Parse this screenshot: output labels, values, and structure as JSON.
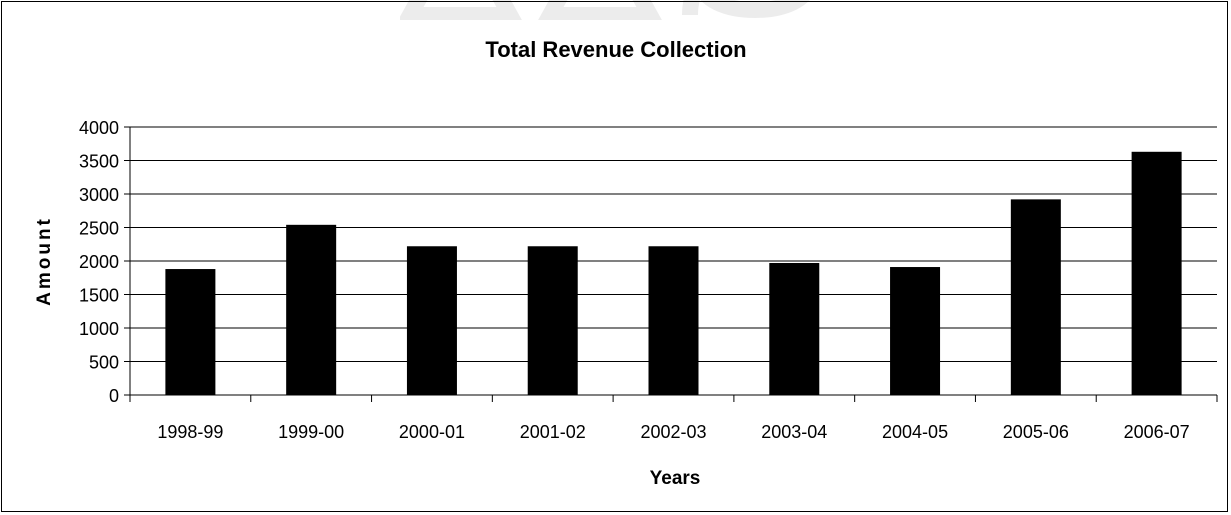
{
  "chart_data": {
    "type": "bar",
    "title": "Total Revenue Collection",
    "xlabel": "Years",
    "ylabel": "Amount",
    "categories": [
      "1998-99",
      "1999-00",
      "2000-01",
      "2001-02",
      "2002-03",
      "2003-04",
      "2004-05",
      "2005-06",
      "2006-07"
    ],
    "values": [
      1880,
      2540,
      2220,
      2220,
      2220,
      1970,
      1910,
      2920,
      3630
    ],
    "ylim": [
      0,
      4000
    ],
    "yticks": [
      0,
      500,
      1000,
      1500,
      2000,
      2500,
      3000,
      3500,
      4000
    ],
    "grid": true,
    "legend": "none",
    "bar_color": "#000000"
  }
}
